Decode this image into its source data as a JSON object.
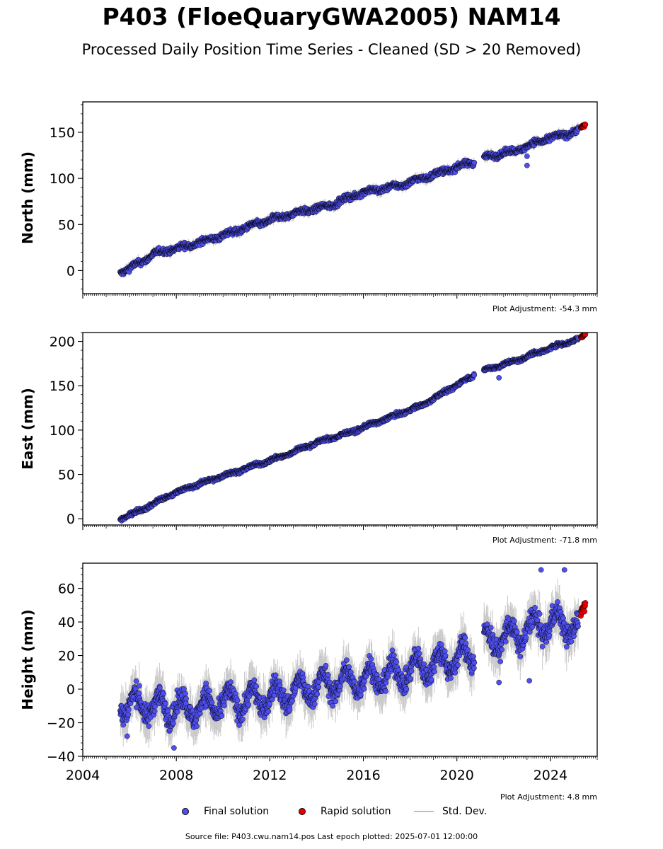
{
  "title": "P403 (FloeQuaryGWA2005) NAM14",
  "subtitle": "Processed Daily Position Time Series - Cleaned (SD > 20 Removed)",
  "legend": {
    "final": "Final solution",
    "rapid": "Rapid solution",
    "std": "Std. Dev."
  },
  "footer": "Source file: P403.cwu.nam14.pos  Last epoch plotted: 2025-07-01 12:00:00",
  "colors": {
    "final": "#4f4ff0",
    "rapid": "#e80000",
    "std": "#bdbdbd",
    "edge": "#000000"
  },
  "chart_data": [
    {
      "type": "scatter",
      "ylabel": "North (mm)",
      "adjustment": "Plot Adjustment: -54.3 mm",
      "xlim": [
        2004.0,
        2026.0
      ],
      "ylim": [
        -25,
        183
      ],
      "yticks": [
        0,
        50,
        100,
        150
      ],
      "grid": false,
      "series": [
        {
          "name": "Final solution",
          "x": [
            2005.6,
            2006.5,
            2007.0,
            2008.5,
            2010.0,
            2011.5,
            2013.0,
            2014.5,
            2016.0,
            2017.5,
            2019.0,
            2020.6,
            2021.2,
            2022.5,
            2023.5,
            2024.5,
            2025.2
          ],
          "y": [
            -2,
            9,
            18,
            27,
            38,
            51,
            62,
            70,
            85,
            92,
            104,
            117,
            123,
            130,
            140,
            147,
            152
          ]
        },
        {
          "name": "Rapid solution",
          "x": [
            2025.3,
            2025.5
          ],
          "y": [
            155,
            158
          ]
        }
      ],
      "outliers": [
        {
          "x": 2023.0,
          "y": 114
        },
        {
          "x": 2023.0,
          "y": 124
        }
      ]
    },
    {
      "type": "scatter",
      "ylabel": "East (mm)",
      "adjustment": "Plot Adjustment: -71.8 mm",
      "xlim": [
        2004.0,
        2026.0
      ],
      "ylim": [
        -7,
        210
      ],
      "yticks": [
        0,
        50,
        100,
        150,
        200
      ],
      "grid": false,
      "series": [
        {
          "name": "Final solution",
          "x": [
            2005.6,
            2006.5,
            2008.0,
            2009.5,
            2011.0,
            2012.5,
            2014.0,
            2015.5,
            2017.0,
            2018.5,
            2020.6,
            2021.2,
            2022.5,
            2023.5,
            2024.5,
            2025.2
          ],
          "y": [
            0,
            10,
            30,
            44,
            57,
            70,
            86,
            98,
            113,
            128,
            160,
            168,
            178,
            188,
            197,
            203
          ]
        },
        {
          "name": "Rapid solution",
          "x": [
            2025.3,
            2025.5
          ],
          "y": [
            205,
            208
          ]
        }
      ],
      "outliers": [
        {
          "x": 2021.8,
          "y": 159
        }
      ]
    },
    {
      "type": "scatter",
      "ylabel": "Height (mm)",
      "adjustment": "Plot Adjustment: 4.8 mm",
      "xlim": [
        2004.0,
        2026.0
      ],
      "ylim": [
        -40,
        75
      ],
      "yticks": [
        -40,
        -20,
        0,
        20,
        40,
        60
      ],
      "xticks": [
        2004,
        2008,
        2012,
        2016,
        2020,
        2024
      ],
      "grid": false,
      "series": [
        {
          "name": "Final solution",
          "x": [
            2005.6,
            2007.0,
            2008.5,
            2010.0,
            2011.5,
            2013.0,
            2014.5,
            2016.0,
            2017.5,
            2019.0,
            2020.6,
            2021.2,
            2022.5,
            2023.5,
            2024.5,
            2025.2
          ],
          "y": [
            -8,
            -10,
            -12,
            -8,
            -6,
            -2,
            3,
            6,
            9,
            15,
            20,
            28,
            32,
            38,
            40,
            35
          ]
        },
        {
          "name": "Rapid solution",
          "x": [
            2025.3,
            2025.5
          ],
          "y": [
            45,
            52
          ]
        }
      ],
      "outliers": [
        {
          "x": 2005.9,
          "y": -28
        },
        {
          "x": 2007.9,
          "y": -35
        },
        {
          "x": 2021.8,
          "y": 4
        },
        {
          "x": 2023.1,
          "y": 5
        },
        {
          "x": 2023.6,
          "y": 71
        },
        {
          "x": 2024.6,
          "y": 71
        }
      ]
    }
  ]
}
